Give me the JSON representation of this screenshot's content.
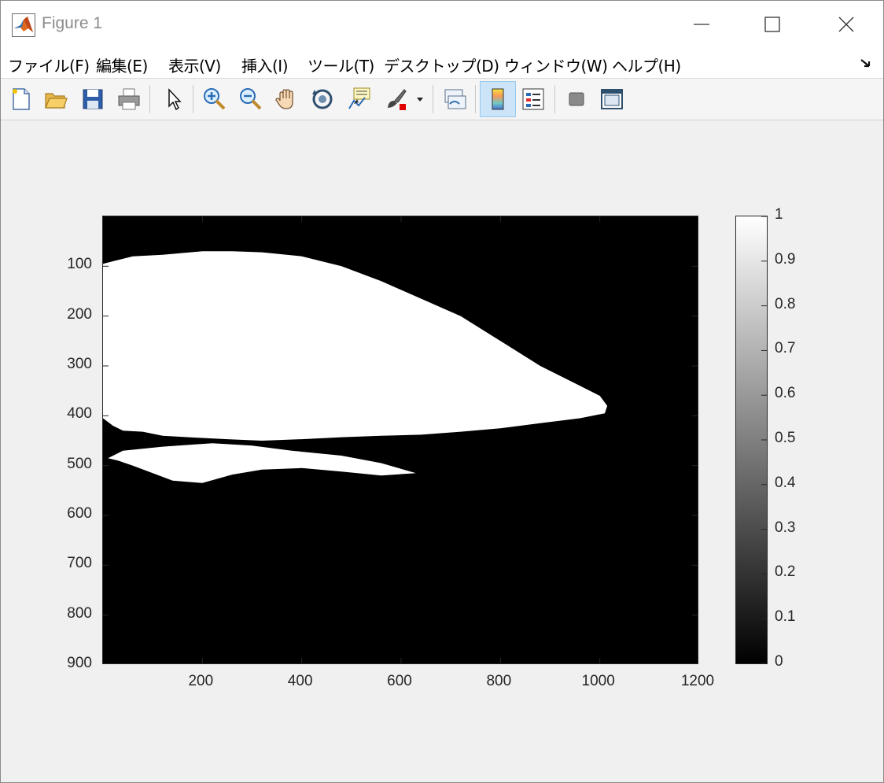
{
  "window": {
    "title": "Figure 1",
    "controls": [
      "minimize",
      "maximize",
      "close"
    ]
  },
  "menu": {
    "items": [
      "ファイル(F)",
      "編集(E)",
      "表示(V)",
      "挿入(I)",
      "ツール(T)",
      "デスクトップ(D)",
      "ウィンドウ(W)",
      "ヘルプ(H)"
    ]
  },
  "toolbar": {
    "buttons": [
      {
        "name": "new-figure",
        "icon": "new-file-icon"
      },
      {
        "name": "open-file",
        "icon": "folder-open-icon"
      },
      {
        "name": "save-figure",
        "icon": "save-icon"
      },
      {
        "name": "print-figure",
        "icon": "printer-icon"
      },
      {
        "name": "edit-plot",
        "icon": "cursor-arrow-icon"
      },
      {
        "name": "zoom-in",
        "icon": "zoom-in-icon"
      },
      {
        "name": "zoom-out",
        "icon": "zoom-out-icon"
      },
      {
        "name": "pan",
        "icon": "hand-icon"
      },
      {
        "name": "rotate-3d",
        "icon": "rotate-3d-icon"
      },
      {
        "name": "data-cursor",
        "icon": "data-cursor-icon"
      },
      {
        "name": "brush",
        "icon": "brush-icon"
      },
      {
        "name": "link-plot",
        "icon": "link-plot-icon"
      },
      {
        "name": "insert-colorbar",
        "icon": "colorbar-icon",
        "active": true
      },
      {
        "name": "insert-legend",
        "icon": "legend-icon"
      },
      {
        "name": "hide-plot-tools",
        "icon": "hide-tools-icon"
      },
      {
        "name": "show-plot-tools",
        "icon": "show-tools-icon"
      }
    ]
  },
  "chart_data": {
    "type": "heatmap",
    "title": "",
    "xlabel": "",
    "ylabel": "",
    "xlim": [
      0,
      1200
    ],
    "ylim": [
      900,
      0
    ],
    "y_reversed": true,
    "x_ticks": [
      200,
      400,
      600,
      800,
      1000,
      1200
    ],
    "y_ticks": [
      100,
      200,
      300,
      400,
      500,
      600,
      700,
      800,
      900
    ],
    "colormap": "gray",
    "binary_values": [
      0,
      1
    ],
    "white_region_outline": [
      [
        0,
        95
      ],
      [
        20,
        90
      ],
      [
        60,
        80
      ],
      [
        120,
        77
      ],
      [
        200,
        70
      ],
      [
        260,
        70
      ],
      [
        320,
        72
      ],
      [
        400,
        80
      ],
      [
        480,
        100
      ],
      [
        560,
        130
      ],
      [
        640,
        165
      ],
      [
        720,
        200
      ],
      [
        800,
        250
      ],
      [
        880,
        300
      ],
      [
        960,
        340
      ],
      [
        1000,
        360
      ],
      [
        1015,
        380
      ],
      [
        1010,
        395
      ],
      [
        960,
        405
      ],
      [
        880,
        415
      ],
      [
        800,
        425
      ],
      [
        720,
        432
      ],
      [
        640,
        438
      ],
      [
        560,
        440
      ],
      [
        480,
        443
      ],
      [
        400,
        447
      ],
      [
        320,
        450
      ],
      [
        250,
        447
      ],
      [
        190,
        444
      ],
      [
        120,
        440
      ],
      [
        80,
        432
      ],
      [
        40,
        430
      ],
      [
        20,
        420
      ],
      [
        0,
        405
      ]
    ],
    "white_lower_band": [
      [
        40,
        470
      ],
      [
        120,
        462
      ],
      [
        220,
        455
      ],
      [
        300,
        460
      ],
      [
        380,
        470
      ],
      [
        480,
        480
      ],
      [
        560,
        495
      ],
      [
        630,
        515
      ],
      [
        560,
        520
      ],
      [
        480,
        512
      ],
      [
        400,
        505
      ],
      [
        320,
        508
      ],
      [
        260,
        518
      ],
      [
        200,
        535
      ],
      [
        140,
        530
      ],
      [
        100,
        515
      ],
      [
        60,
        500
      ],
      [
        30,
        490
      ],
      [
        10,
        485
      ]
    ],
    "dark_holes": [
      [
        [
          0,
          435
        ],
        [
          30,
          440
        ],
        [
          40,
          460
        ],
        [
          10,
          468
        ],
        [
          0,
          455
        ]
      ]
    ],
    "colorbar": {
      "range": [
        0,
        1
      ],
      "ticks": [
        0,
        0.1,
        0.2,
        0.3,
        0.4,
        0.5,
        0.6,
        0.7,
        0.8,
        0.9,
        1
      ]
    }
  },
  "colors": {
    "titlebar_bg": "#ffffff",
    "window_bg": "#f0f0f0",
    "toolbar_active": "#cce4f7",
    "axis_color": "#262626"
  }
}
